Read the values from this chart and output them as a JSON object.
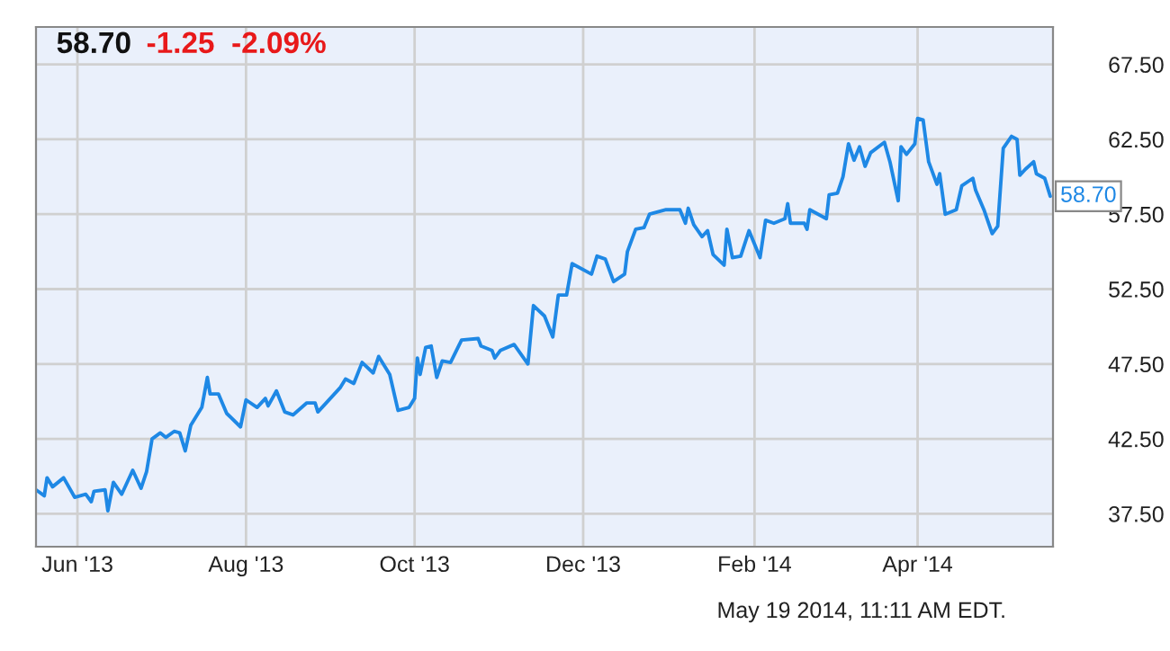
{
  "chart_data": {
    "type": "line",
    "title": "58.70",
    "subtitle": "-1.25  -2.09%",
    "annotations": [
      "May 19 2014, 11:11 AM EDT."
    ],
    "x": [
      "2013-05-17",
      "2013-05-20",
      "2013-05-21",
      "2013-05-23",
      "2013-05-27",
      "2013-05-31",
      "2013-06-04",
      "2013-06-06",
      "2013-06-07",
      "2013-06-11",
      "2013-06-12",
      "2013-06-14",
      "2013-06-17",
      "2013-06-21",
      "2013-06-24",
      "2013-06-26",
      "2013-06-28",
      "2013-07-01",
      "2013-07-03",
      "2013-07-06",
      "2013-07-08",
      "2013-07-10",
      "2013-07-12",
      "2013-07-16",
      "2013-07-18",
      "2013-07-19",
      "2013-07-22",
      "2013-07-25",
      "2013-07-30",
      "2013-08-01",
      "2013-08-05",
      "2013-08-08",
      "2013-08-09",
      "2013-08-12",
      "2013-08-15",
      "2013-08-18",
      "2013-08-23",
      "2013-08-26",
      "2013-08-27",
      "2013-08-30",
      "2013-09-04",
      "2013-09-06",
      "2013-09-09",
      "2013-09-12",
      "2013-09-16",
      "2013-09-18",
      "2013-09-22",
      "2013-09-25",
      "2013-09-29",
      "2013-10-01",
      "2013-10-02",
      "2013-10-03",
      "2013-10-05",
      "2013-10-07",
      "2013-10-09",
      "2013-10-11",
      "2013-10-14",
      "2013-10-18",
      "2013-10-24",
      "2013-10-25",
      "2013-10-29",
      "2013-10-30",
      "2013-11-01",
      "2013-11-06",
      "2013-11-11",
      "2013-11-13",
      "2013-11-17",
      "2013-11-20",
      "2013-11-22",
      "2013-11-25",
      "2013-11-27",
      "2013-12-04",
      "2013-12-06",
      "2013-12-09",
      "2013-12-12",
      "2013-12-16",
      "2013-12-17",
      "2013-12-20",
      "2013-12-23",
      "2013-12-25",
      "2013-12-31",
      "2014-01-05",
      "2014-01-07",
      "2014-01-08",
      "2014-01-10",
      "2014-01-13",
      "2014-01-15",
      "2014-01-17",
      "2014-01-21",
      "2014-01-22",
      "2014-01-24",
      "2014-01-27",
      "2014-01-30",
      "2014-02-03",
      "2014-02-05",
      "2014-02-08",
      "2014-02-12",
      "2014-02-13",
      "2014-02-14",
      "2014-02-19",
      "2014-02-20",
      "2014-02-21",
      "2014-02-24",
      "2014-02-27",
      "2014-02-28",
      "2014-03-03",
      "2014-03-05",
      "2014-03-07",
      "2014-03-09",
      "2014-03-11",
      "2014-03-13",
      "2014-03-15",
      "2014-03-20",
      "2014-03-22",
      "2014-03-25",
      "2014-03-26",
      "2014-03-28",
      "2014-03-31",
      "2014-04-01",
      "2014-04-03",
      "2014-04-05",
      "2014-04-08",
      "2014-04-09",
      "2014-04-11",
      "2014-04-15",
      "2014-04-17",
      "2014-04-21",
      "2014-04-22",
      "2014-04-25",
      "2014-04-28",
      "2014-04-30",
      "2014-05-02",
      "2014-05-05",
      "2014-05-07",
      "2014-05-08",
      "2014-05-10",
      "2014-05-13",
      "2014-05-14",
      "2014-05-17",
      "2014-05-19"
    ],
    "series": [
      {
        "color": "#1e88e5",
        "values": [
          39.1,
          38.7,
          39.9,
          39.3,
          39.9,
          38.6,
          38.8,
          38.3,
          39.0,
          39.1,
          37.7,
          39.6,
          38.8,
          40.4,
          39.2,
          40.3,
          42.5,
          42.9,
          42.6,
          43.0,
          42.9,
          41.7,
          43.4,
          44.6,
          46.6,
          45.5,
          45.5,
          44.2,
          43.3,
          45.1,
          44.6,
          45.2,
          44.7,
          45.7,
          44.3,
          44.1,
          44.9,
          44.9,
          44.3,
          44.9,
          45.9,
          46.5,
          46.2,
          47.6,
          46.9,
          48.0,
          46.8,
          44.4,
          44.6,
          45.2,
          47.9,
          46.8,
          48.6,
          48.7,
          46.6,
          47.7,
          47.6,
          49.1,
          49.2,
          48.7,
          48.4,
          47.9,
          48.4,
          48.8,
          47.5,
          51.4,
          50.7,
          49.3,
          52.1,
          52.1,
          54.2,
          53.5,
          54.7,
          54.5,
          53.0,
          53.5,
          55.0,
          56.5,
          56.6,
          57.5,
          57.8,
          57.8,
          56.9,
          57.9,
          56.8,
          56.0,
          56.4,
          54.8,
          54.1,
          56.5,
          54.6,
          54.7,
          56.4,
          54.6,
          57.1,
          56.9,
          57.2,
          58.2,
          56.9,
          56.9,
          56.5,
          57.8,
          57.5,
          57.2,
          58.8,
          58.9,
          60.0,
          62.2,
          61.1,
          62.0,
          60.7,
          61.6,
          62.3,
          61.0,
          58.4,
          62.0,
          61.5,
          62.2,
          63.9,
          63.8,
          61.0,
          59.5,
          60.2,
          57.5,
          57.8,
          59.4,
          59.9,
          59.1,
          57.8,
          56.2,
          56.7,
          61.9,
          62.7,
          62.5,
          60.1,
          60.5,
          61.0,
          60.2,
          59.9,
          58.7
        ],
        "value_labels": [
          null,
          null,
          null,
          null,
          null,
          null,
          null,
          null,
          null,
          null,
          null,
          null,
          null,
          null,
          null,
          null,
          null,
          null,
          null,
          null,
          null,
          null,
          null,
          null,
          null,
          null,
          null,
          null,
          null,
          null,
          null,
          null,
          null,
          null,
          null,
          null,
          null,
          null,
          null,
          null,
          null,
          null,
          null,
          null,
          null,
          null,
          null,
          null,
          null,
          null,
          null,
          null,
          null,
          null,
          null,
          null,
          null,
          null,
          null,
          null,
          null,
          null,
          null,
          null,
          null,
          null,
          null,
          null,
          null,
          null,
          null,
          null,
          null,
          null,
          null,
          null,
          null,
          null,
          null,
          null,
          null,
          null,
          null,
          null,
          null,
          null,
          null,
          null,
          null,
          null,
          null,
          null,
          null,
          null,
          null,
          null,
          null,
          null,
          null,
          null,
          null,
          null,
          null,
          null,
          null,
          null,
          null,
          null,
          null,
          null,
          null,
          null,
          null,
          null,
          null,
          null,
          null,
          null,
          null,
          null,
          null,
          null,
          null,
          null,
          null,
          null,
          null,
          null,
          null,
          null,
          null,
          null,
          null,
          null,
          null,
          null,
          null,
          null,
          null,
          "58.70"
        ]
      }
    ],
    "xlim": [
      "2013-05-17",
      "2014-05-20"
    ],
    "xticks": [
      {
        "value": "2013-06-01",
        "label": "Jun '13"
      },
      {
        "value": "2013-08-01",
        "label": "Aug '13"
      },
      {
        "value": "2013-10-01",
        "label": "Oct '13"
      },
      {
        "value": "2013-12-01",
        "label": "Dec '13"
      },
      {
        "value": "2014-02-01",
        "label": "Feb '14"
      },
      {
        "value": "2014-04-01",
        "label": "Apr '14"
      }
    ],
    "ylim": [
      35.3,
      70.0
    ],
    "yticks": [
      {
        "value": 37.5,
        "label": "37.50"
      },
      {
        "value": 42.5,
        "label": "42.50"
      },
      {
        "value": 47.5,
        "label": "47.50"
      },
      {
        "value": 52.5,
        "label": "52.50"
      },
      {
        "value": 57.5,
        "label": "57.50"
      },
      {
        "value": 62.5,
        "label": "62.50"
      },
      {
        "value": 67.5,
        "label": "67.50"
      }
    ],
    "grid": true
  }
}
